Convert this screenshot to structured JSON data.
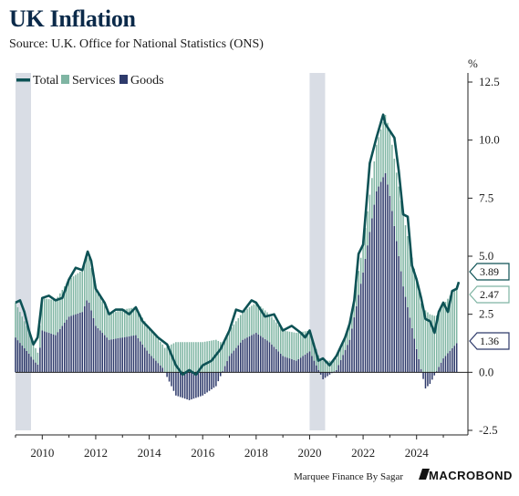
{
  "title": "UK Inflation",
  "subtitle": "Source: U.K. Office for National Statistics (ONS)",
  "footer": {
    "note": "Marquee Finance By Sagar",
    "brand": "MACROBOND"
  },
  "colors": {
    "total": "#0d5255",
    "services": "#7fb5a3",
    "goods": "#2e3a6b",
    "recession": "#d9dde5"
  },
  "chart_data": {
    "type": "bar",
    "unit_label": "%",
    "legend": [
      {
        "name": "Total",
        "swatch": "line"
      },
      {
        "name": "Services",
        "swatch": "square"
      },
      {
        "name": "Goods",
        "swatch": "square"
      }
    ],
    "legend_position": "top-left",
    "grid": false,
    "xlim": [
      2009.0,
      2025.92
    ],
    "ylim": [
      -2.5,
      12.5
    ],
    "yticks": [
      -2.5,
      0.0,
      2.5,
      5.0,
      7.5,
      10.0,
      12.5
    ],
    "ytick_labels": [
      "-2.5",
      "0.0",
      "2.5",
      "5.0",
      "7.5",
      "10.0",
      "12.5"
    ],
    "xticks": [
      2010,
      2012,
      2014,
      2016,
      2018,
      2020,
      2022,
      2024
    ],
    "xtick_labels": [
      "2010",
      "2012",
      "2014",
      "2016",
      "2018",
      "2020",
      "2022",
      "2024"
    ],
    "shaded_periods": [
      [
        2009.0,
        2009.58
      ],
      [
        2020.0,
        2020.58
      ]
    ],
    "end_labels": [
      {
        "series": "Total",
        "value": 3.89,
        "text": "3.89"
      },
      {
        "series": "Services",
        "value": 2.47,
        "text": "2.47"
      },
      {
        "series": "Goods",
        "value": 1.36,
        "text": "1.36"
      }
    ],
    "series": [
      {
        "name": "Total",
        "kind": "line",
        "points": [
          [
            2009.0,
            3.0
          ],
          [
            2009.17,
            3.1
          ],
          [
            2009.33,
            2.6
          ],
          [
            2009.5,
            1.8
          ],
          [
            2009.67,
            1.2
          ],
          [
            2009.83,
            1.5
          ],
          [
            2010.0,
            3.2
          ],
          [
            2010.25,
            3.3
          ],
          [
            2010.5,
            3.1
          ],
          [
            2010.75,
            3.2
          ],
          [
            2011.0,
            4.0
          ],
          [
            2011.25,
            4.5
          ],
          [
            2011.5,
            4.4
          ],
          [
            2011.7,
            5.2
          ],
          [
            2011.83,
            4.8
          ],
          [
            2012.0,
            3.6
          ],
          [
            2012.33,
            3.0
          ],
          [
            2012.5,
            2.5
          ],
          [
            2012.75,
            2.7
          ],
          [
            2013.0,
            2.7
          ],
          [
            2013.25,
            2.5
          ],
          [
            2013.5,
            2.8
          ],
          [
            2013.75,
            2.2
          ],
          [
            2014.0,
            1.9
          ],
          [
            2014.33,
            1.5
          ],
          [
            2014.67,
            1.2
          ],
          [
            2015.0,
            0.3
          ],
          [
            2015.25,
            -0.1
          ],
          [
            2015.5,
            0.1
          ],
          [
            2015.75,
            -0.1
          ],
          [
            2016.0,
            0.3
          ],
          [
            2016.33,
            0.5
          ],
          [
            2016.67,
            1.0
          ],
          [
            2017.0,
            1.8
          ],
          [
            2017.25,
            2.7
          ],
          [
            2017.5,
            2.6
          ],
          [
            2017.83,
            3.1
          ],
          [
            2018.0,
            3.0
          ],
          [
            2018.33,
            2.4
          ],
          [
            2018.67,
            2.5
          ],
          [
            2019.0,
            1.8
          ],
          [
            2019.33,
            2.0
          ],
          [
            2019.67,
            1.7
          ],
          [
            2019.83,
            1.5
          ],
          [
            2020.0,
            1.8
          ],
          [
            2020.33,
            0.5
          ],
          [
            2020.5,
            0.6
          ],
          [
            2020.75,
            0.3
          ],
          [
            2021.0,
            0.7
          ],
          [
            2021.33,
            1.5
          ],
          [
            2021.5,
            2.1
          ],
          [
            2021.67,
            3.1
          ],
          [
            2021.83,
            5.1
          ],
          [
            2022.0,
            5.5
          ],
          [
            2022.25,
            9.0
          ],
          [
            2022.5,
            10.1
          ],
          [
            2022.75,
            11.1
          ],
          [
            2022.83,
            10.7
          ],
          [
            2023.0,
            10.4
          ],
          [
            2023.17,
            10.1
          ],
          [
            2023.33,
            8.7
          ],
          [
            2023.5,
            6.8
          ],
          [
            2023.67,
            6.7
          ],
          [
            2023.83,
            4.6
          ],
          [
            2024.0,
            4.0
          ],
          [
            2024.17,
            3.2
          ],
          [
            2024.33,
            2.3
          ],
          [
            2024.5,
            2.2
          ],
          [
            2024.67,
            1.7
          ],
          [
            2024.83,
            2.6
          ],
          [
            2025.0,
            3.0
          ],
          [
            2025.17,
            2.6
          ],
          [
            2025.33,
            3.5
          ],
          [
            2025.5,
            3.6
          ],
          [
            2025.58,
            3.89
          ]
        ]
      },
      {
        "name": "Services",
        "kind": "bar",
        "points": [
          [
            2009.0,
            1.5
          ],
          [
            2009.5,
            1.0
          ],
          [
            2009.83,
            0.5
          ],
          [
            2010.0,
            1.4
          ],
          [
            2010.5,
            1.5
          ],
          [
            2011.0,
            1.6
          ],
          [
            2011.5,
            1.8
          ],
          [
            2011.7,
            2.0
          ],
          [
            2012.0,
            1.6
          ],
          [
            2012.5,
            1.1
          ],
          [
            2013.0,
            1.2
          ],
          [
            2013.5,
            1.2
          ],
          [
            2014.0,
            1.1
          ],
          [
            2014.5,
            1.0
          ],
          [
            2015.0,
            1.3
          ],
          [
            2015.5,
            1.3
          ],
          [
            2016.0,
            1.3
          ],
          [
            2016.5,
            1.4
          ],
          [
            2017.0,
            1.1
          ],
          [
            2017.5,
            1.2
          ],
          [
            2018.0,
            1.3
          ],
          [
            2018.5,
            1.2
          ],
          [
            2019.0,
            1.1
          ],
          [
            2019.5,
            1.2
          ],
          [
            2020.0,
            0.9
          ],
          [
            2020.5,
            0.5
          ],
          [
            2021.0,
            0.5
          ],
          [
            2021.5,
            0.7
          ],
          [
            2022.0,
            1.2
          ],
          [
            2022.5,
            2.0
          ],
          [
            2022.83,
            2.5
          ],
          [
            2023.0,
            2.8
          ],
          [
            2023.5,
            3.1
          ],
          [
            2024.0,
            3.0
          ],
          [
            2024.5,
            2.5
          ],
          [
            2025.0,
            2.3
          ],
          [
            2025.58,
            2.47
          ]
        ]
      },
      {
        "name": "Goods",
        "kind": "bar",
        "points": [
          [
            2009.0,
            1.5
          ],
          [
            2009.5,
            0.8
          ],
          [
            2009.83,
            0.3
          ],
          [
            2010.0,
            1.8
          ],
          [
            2010.5,
            1.6
          ],
          [
            2011.0,
            2.4
          ],
          [
            2011.5,
            2.6
          ],
          [
            2011.7,
            3.2
          ],
          [
            2012.0,
            2.0
          ],
          [
            2012.5,
            1.4
          ],
          [
            2013.0,
            1.5
          ],
          [
            2013.5,
            1.6
          ],
          [
            2014.0,
            0.8
          ],
          [
            2014.5,
            0.2
          ],
          [
            2015.0,
            -1.0
          ],
          [
            2015.5,
            -1.2
          ],
          [
            2016.0,
            -1.0
          ],
          [
            2016.5,
            -0.6
          ],
          [
            2017.0,
            0.7
          ],
          [
            2017.5,
            1.4
          ],
          [
            2018.0,
            1.7
          ],
          [
            2018.5,
            1.3
          ],
          [
            2019.0,
            0.7
          ],
          [
            2019.5,
            0.5
          ],
          [
            2020.0,
            0.9
          ],
          [
            2020.5,
            -0.3
          ],
          [
            2021.0,
            0.1
          ],
          [
            2021.5,
            1.4
          ],
          [
            2022.0,
            4.3
          ],
          [
            2022.5,
            7.8
          ],
          [
            2022.83,
            8.6
          ],
          [
            2023.0,
            7.6
          ],
          [
            2023.5,
            3.7
          ],
          [
            2024.0,
            1.0
          ],
          [
            2024.33,
            -0.7
          ],
          [
            2024.5,
            -0.5
          ],
          [
            2025.0,
            0.6
          ],
          [
            2025.58,
            1.36
          ]
        ]
      }
    ]
  }
}
